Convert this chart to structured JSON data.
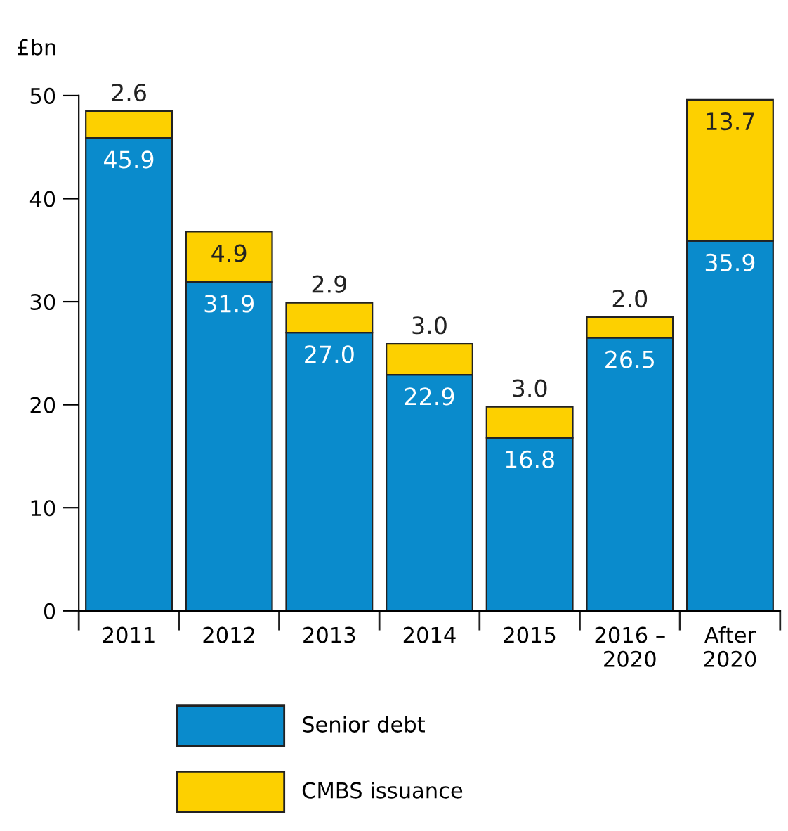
{
  "chart_data": {
    "type": "bar",
    "stacked": true,
    "ylabel": "£bn",
    "categories": [
      "2011",
      "2012",
      "2013",
      "2014",
      "2015",
      "2016 – 2020",
      "After 2020"
    ],
    "series": [
      {
        "name": "Senior debt",
        "color": "#0a8bcc",
        "values": [
          45.9,
          31.9,
          27.0,
          22.9,
          16.8,
          26.5,
          35.9
        ],
        "value_labels": [
          "45.9",
          "31.9",
          "27.0",
          "22.9",
          "16.8",
          "26.5",
          "35.9"
        ]
      },
      {
        "name": "CMBS issuance",
        "color": "#fdd000",
        "values": [
          2.6,
          4.9,
          2.9,
          3.0,
          3.0,
          2.0,
          13.7
        ],
        "value_labels": [
          "2.6",
          "4.9",
          "2.9",
          "3.0",
          "3.0",
          "2.0",
          "13.7"
        ]
      }
    ],
    "ylim": [
      0,
      50
    ],
    "yticks": [
      0,
      10,
      20,
      30,
      40,
      50
    ],
    "grid": false,
    "legend": "bottom"
  }
}
